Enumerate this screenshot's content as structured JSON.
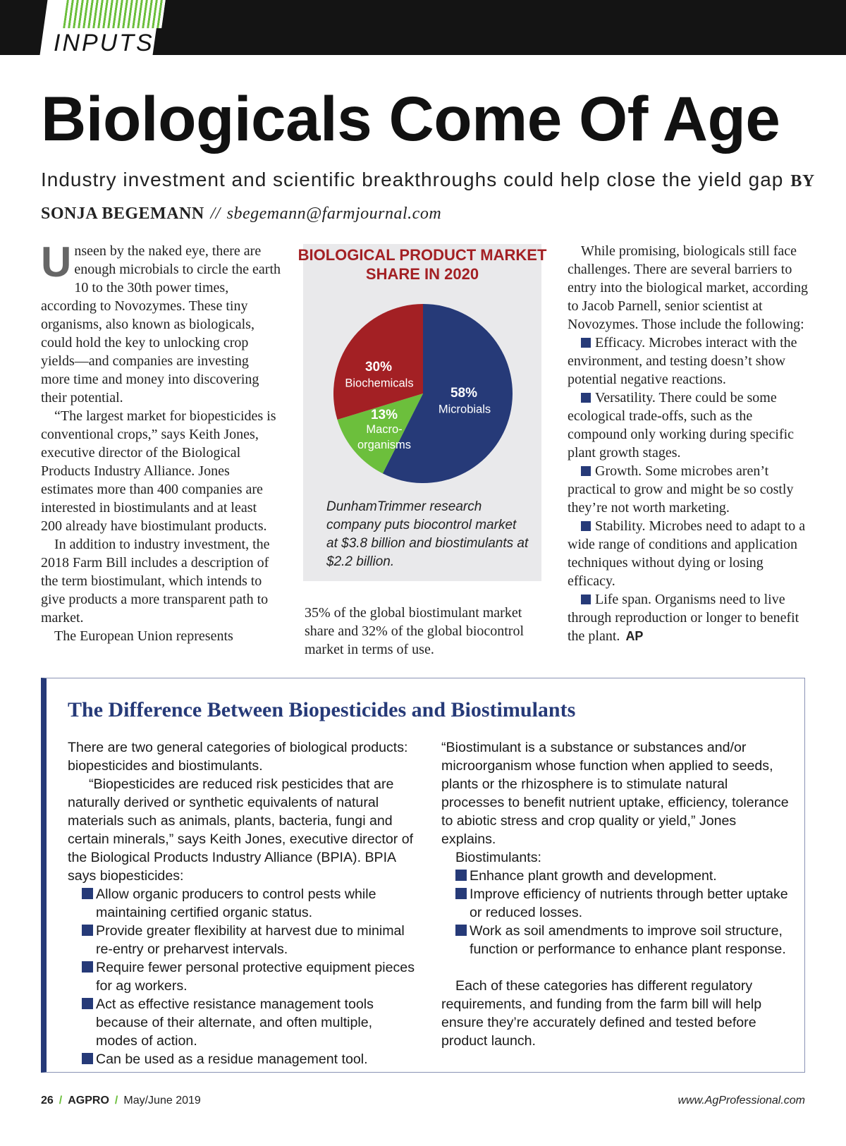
{
  "header": {
    "section": "INPUTS"
  },
  "article": {
    "title": "Biologicals Come Of Age",
    "subtitle": "Industry investment and scientific breakthroughs could help close the yield gap",
    "byline": "BY SONJA BEGEMANN",
    "byline_separator": "//",
    "email": "sbegemann@farmjournal.com",
    "left_column": [
      "Unseen by the naked eye, there are enough microbials to circle the earth 10 to the 30th power times, according to Novozymes. These tiny organisms, also known as biologicals, could hold the key to unlocking crop yields—and companies are investing more time and money into discovering their potential.",
      "“The largest market for biopesticides is conventional crops,” says Keith Jones, executive director of the Biological Products Industry Alliance. Jones estimates more than 400 companies are interested in biostimulants and at least 200 already have biostimulant products.",
      "In addition to industry investment, the 2018 Farm Bill includes a description of the term biostimulant, which intends to give products a more transparent path to market.",
      "The European Union represents"
    ],
    "middle_column": [
      "35% of the global biostimulant market share and 32% of the global biocontrol market in terms of use."
    ],
    "right_column": {
      "intro": "While promising, biologicals still face challenges. There are several barriers to entry into the biological market, according to Jacob Parnell, senior scientist at Novozymes. Those include the following:",
      "bullets": [
        "Efficacy. Microbes interact with the environment, and testing doesn’t show potential negative reactions.",
        "Versatility. There could be some ecological trade-offs, such as the compound only working during specific plant growth stages.",
        "Growth. Some microbes aren’t practical to grow and might be so costly they’re not worth marketing.",
        "Stability. Microbes need to adapt to a wide range of conditions and application techniques without dying or losing efficacy.",
        "Life span. Organisms need to live through reproduction or longer to benefit the plant."
      ],
      "end_mark": "AP"
    }
  },
  "chart_data": {
    "type": "pie",
    "title": "BIOLOGICAL PRODUCT MARKET SHARE IN 2020",
    "categories": [
      "Microbials",
      "Macro-organisms",
      "Biochemicals"
    ],
    "values": [
      58,
      13,
      30
    ],
    "value_labels": [
      "58%",
      "13%",
      "30%"
    ],
    "colors": [
      "#263a78",
      "#6cbf3c",
      "#a32024"
    ],
    "caption": "DunhamTrimmer research company puts biocontrol market at $3.8 billion and biostimulants at $2.2 billion."
  },
  "sidebar": {
    "title": "The Difference Between Biopesticides and Biostimulants",
    "left": {
      "paragraphs": [
        "There are two general categories of biological products: biopesticides and biostimulants.",
        "“Biopesticides are reduced risk pesticides that are naturally derived or synthetic equivalents of natural materials such as animals, plants, bacteria, fungi and certain minerals,” says Keith Jones, executive director of the Biological Products Industry Alliance (BPIA). BPIA says biopesticides:"
      ],
      "bullets": [
        "Allow organic producers to control pests while maintaining certified organic status.",
        "Provide greater flexibility at harvest due to minimal re-entry or preharvest intervals.",
        "Require fewer personal protective equipment pieces for ag workers.",
        "Act as effective resistance management tools because of their alternate, and often multiple, modes of action.",
        "Can be used as a residue management tool."
      ]
    },
    "right": {
      "paragraphs": [
        "“Biostimulant is a substance or substances and/or microorganism whose function when applied to seeds, plants or the rhizosphere is to stimulate natural processes to benefit nutrient uptake, efficiency, tolerance to abiotic stress and crop quality or yield,” Jones explains.",
        "Biostimulants:"
      ],
      "bullets": [
        "Enhance plant growth and development.",
        "Improve efficiency of nutrients through better uptake or reduced losses.",
        "Work as soil amendments to improve soil structure, function or performance to enhance plant response."
      ],
      "closing": "Each of these categories has different regulatory requirements, and funding from the farm bill will help ensure they’re accurately defined and tested before product launch."
    }
  },
  "footer": {
    "page": "26",
    "separator": "/",
    "magazine": "AGPRO",
    "issue": "May/June 2019",
    "url": "www.AgProfessional.com"
  }
}
